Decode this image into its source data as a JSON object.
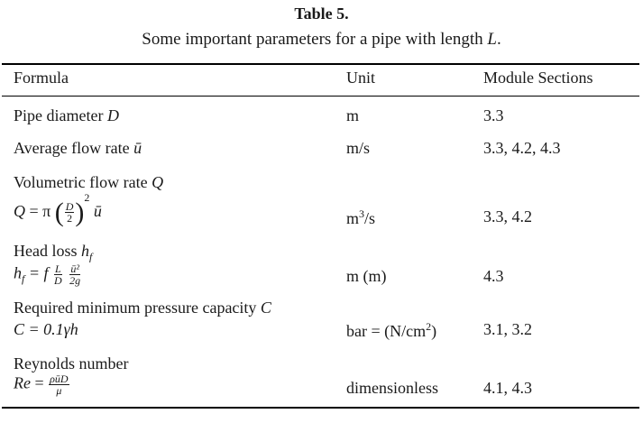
{
  "caption": {
    "title": "Table 5.",
    "subtitle_prefix": "Some important parameters for a pipe with length ",
    "subtitle_var": "L",
    "subtitle_suffix": "."
  },
  "headers": {
    "formula": "Formula",
    "unit": "Unit",
    "sections": "Module Sections"
  },
  "rows": {
    "diameter": {
      "label": "Pipe diameter ",
      "var": "D",
      "unit": "m",
      "sections": "3.3"
    },
    "avg_flow": {
      "label": "Average flow rate ",
      "var": "ū",
      "unit": "m/s",
      "sections": "3.3, 4.2, 4.3"
    },
    "vol_flow": {
      "label": "Volumetric flow rate ",
      "var": "Q",
      "f_lhs": "Q",
      "f_eq": " = π",
      "f_num": "D",
      "f_den": "2",
      "f_exp": "2",
      "f_tail": "ū",
      "unit_base": "m",
      "unit_exp": "3",
      "unit_tail": "/s",
      "sections": "3.3, 4.2"
    },
    "head_loss": {
      "label": "Head loss ",
      "var": "h",
      "var_sub": "f",
      "f_lhs": "h",
      "f_lhs_sub": "f",
      "f_eq": " = f",
      "f_num1": "L",
      "f_den1": "D",
      "f_num2": "ū²",
      "f_den2": "2g",
      "unit": "m (m)",
      "sections": "4.3"
    },
    "pressure": {
      "label": "Required minimum pressure capacity ",
      "var": "C",
      "formula": "C = 0.1γh",
      "unit_base": "bar = (N/cm",
      "unit_exp": "2",
      "unit_tail": ")",
      "sections": "3.1, 3.2"
    },
    "reynolds": {
      "label": "Reynolds number",
      "f_lhs": "Re",
      "f_eq": " = ",
      "f_num": "ρūD",
      "f_den": "μ",
      "unit": "dimensionless",
      "sections": "4.1, 4.3"
    }
  }
}
